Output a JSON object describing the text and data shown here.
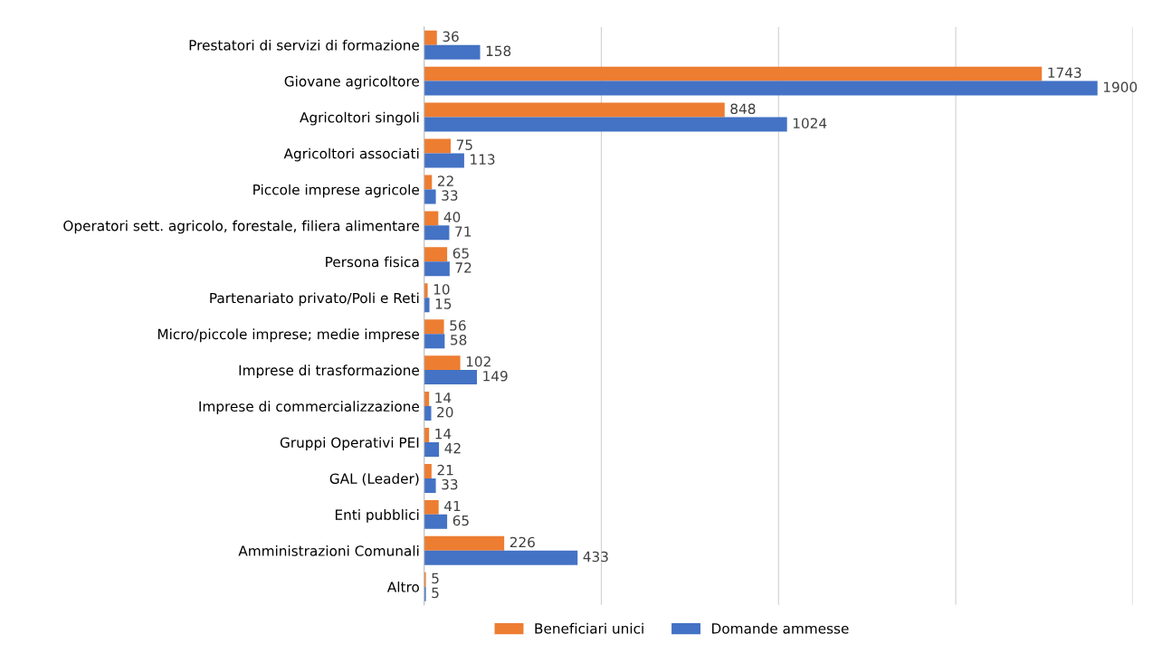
{
  "chart_data": {
    "type": "bar",
    "orientation": "horizontal",
    "categories": [
      "Prestatori di servizi di formazione",
      "Giovane agricoltore",
      "Agricoltori singoli",
      "Agricoltori associati",
      "Piccole imprese agricole",
      "Operatori sett. agricolo, forestale, filiera alimentare",
      "Persona fisica",
      "Partenariato privato/Poli e Reti",
      "Micro/piccole imprese; medie imprese",
      "Imprese di trasformazione",
      "Imprese di commercializzazione",
      "Gruppi Operativi PEI",
      "GAL (Leader)",
      "Enti pubblici",
      "Amministrazioni Comunali",
      "Altro"
    ],
    "series": [
      {
        "name": "Beneficiari unici",
        "color": "#ed7d31",
        "values": [
          36,
          1743,
          848,
          75,
          22,
          40,
          65,
          10,
          56,
          102,
          14,
          14,
          21,
          41,
          226,
          5
        ]
      },
      {
        "name": "Domande ammesse",
        "color": "#4472c4",
        "values": [
          158,
          1900,
          1024,
          113,
          33,
          71,
          72,
          15,
          58,
          149,
          20,
          42,
          33,
          65,
          433,
          5
        ]
      }
    ],
    "xlim": [
      0,
      2000
    ],
    "xticks": [
      {
        "value": 0,
        "label": null
      },
      {
        "value": 500,
        "label": null
      },
      {
        "value": 1000,
        "label": null
      },
      {
        "value": 1500,
        "label": null
      },
      {
        "value": 2000,
        "label": null
      }
    ],
    "grid": "x",
    "data_labels": true,
    "legend": "bottom",
    "tick_labels": "y"
  }
}
